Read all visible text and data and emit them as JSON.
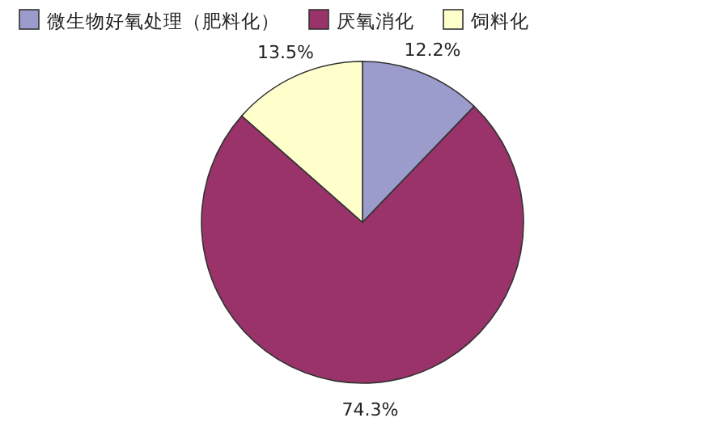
{
  "chart_data": {
    "type": "pie",
    "categories": [
      "微生物好氧处理（肥料化）",
      "厌氧消化",
      "饲料化"
    ],
    "values": [
      12.2,
      74.3,
      13.5
    ],
    "value_labels": [
      "12.2%",
      "74.3%",
      "13.5%"
    ],
    "colors": [
      "#9c9ccc",
      "#99336a",
      "#ffffcc"
    ],
    "legend": "top"
  }
}
